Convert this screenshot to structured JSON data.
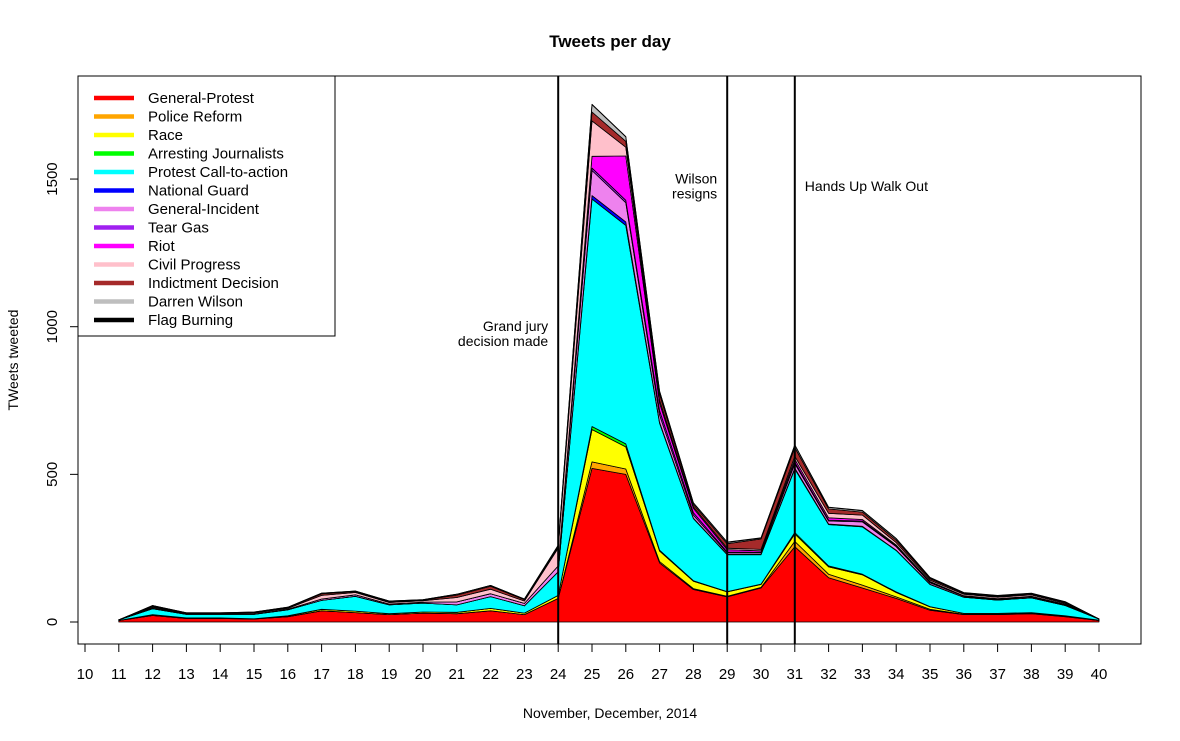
{
  "chart_data": {
    "type": "area",
    "title": "Tweets per day",
    "xlabel": "November, December, 2014",
    "ylabel": "TWeets tweeted",
    "xlim": [
      10,
      40
    ],
    "ylim": [
      0,
      1750
    ],
    "x": [
      11,
      12,
      13,
      14,
      15,
      16,
      17,
      18,
      19,
      20,
      21,
      22,
      23,
      24,
      25,
      26,
      27,
      28,
      29,
      30,
      31,
      32,
      33,
      34,
      35,
      36,
      37,
      38,
      39,
      40
    ],
    "x_ticks": [
      10,
      11,
      12,
      13,
      14,
      15,
      16,
      17,
      18,
      19,
      20,
      21,
      22,
      23,
      24,
      25,
      26,
      27,
      28,
      29,
      30,
      31,
      32,
      33,
      34,
      35,
      36,
      37,
      38,
      39,
      40
    ],
    "y_ticks": [
      0,
      500,
      1000,
      1500
    ],
    "legend_position": "top-left",
    "series": [
      {
        "name": "General-Protest",
        "color": "#ff0000",
        "values": [
          5,
          22,
          12,
          12,
          10,
          18,
          38,
          32,
          25,
          30,
          28,
          38,
          25,
          80,
          520,
          500,
          200,
          110,
          85,
          115,
          255,
          150,
          115,
          80,
          40,
          25,
          25,
          28,
          18,
          5
        ]
      },
      {
        "name": "Police Reform",
        "color": "#ffa500",
        "values": [
          0,
          0,
          0,
          0,
          0,
          0,
          0,
          0,
          0,
          0,
          0,
          0,
          0,
          0,
          22,
          18,
          5,
          3,
          2,
          2,
          18,
          12,
          10,
          5,
          3,
          1,
          1,
          1,
          1,
          0
        ]
      },
      {
        "name": "Race",
        "color": "#ffff00",
        "values": [
          0,
          3,
          2,
          2,
          1,
          3,
          5,
          5,
          3,
          4,
          5,
          8,
          5,
          10,
          110,
          75,
          35,
          25,
          15,
          10,
          25,
          25,
          35,
          15,
          8,
          3,
          3,
          3,
          2,
          1
        ]
      },
      {
        "name": "Arresting Journalists",
        "color": "#00ff00",
        "values": [
          0,
          0,
          0,
          0,
          0,
          0,
          0,
          0,
          0,
          0,
          0,
          0,
          0,
          0,
          10,
          10,
          3,
          2,
          1,
          1,
          5,
          3,
          2,
          2,
          1,
          0,
          0,
          0,
          0,
          0
        ]
      },
      {
        "name": "Protest Call-to-action",
        "color": "#00ffff",
        "values": [
          2,
          20,
          12,
          12,
          15,
          20,
          30,
          50,
          30,
          30,
          25,
          40,
          25,
          80,
          770,
          740,
          430,
          210,
          125,
          100,
          215,
          140,
          160,
          140,
          75,
          55,
          45,
          50,
          35,
          4
        ]
      },
      {
        "name": "National Guard",
        "color": "#0000ff",
        "values": [
          0,
          0,
          0,
          0,
          0,
          0,
          0,
          0,
          0,
          0,
          0,
          0,
          0,
          0,
          12,
          12,
          3,
          2,
          1,
          1,
          3,
          2,
          2,
          1,
          1,
          0,
          0,
          0,
          0,
          0
        ]
      },
      {
        "name": "General-Incident",
        "color": "#ee82ee",
        "values": [
          0,
          2,
          1,
          1,
          1,
          2,
          5,
          5,
          3,
          3,
          10,
          10,
          8,
          20,
          85,
          65,
          25,
          10,
          5,
          5,
          15,
          10,
          15,
          12,
          5,
          3,
          3,
          3,
          2,
          0
        ]
      },
      {
        "name": "Tear Gas",
        "color": "#a020f0",
        "values": [
          0,
          0,
          0,
          0,
          0,
          0,
          0,
          0,
          0,
          0,
          0,
          0,
          0,
          0,
          8,
          8,
          15,
          8,
          3,
          2,
          5,
          3,
          3,
          3,
          2,
          1,
          1,
          1,
          1,
          0
        ]
      },
      {
        "name": "Riot",
        "color": "#ff00ff",
        "values": [
          0,
          0,
          0,
          0,
          0,
          0,
          0,
          0,
          0,
          0,
          0,
          0,
          0,
          0,
          40,
          150,
          25,
          15,
          8,
          5,
          10,
          8,
          5,
          3,
          2,
          1,
          1,
          1,
          1,
          0
        ]
      },
      {
        "name": "Civil Progress",
        "color": "#ffc0cb",
        "values": [
          0,
          3,
          2,
          2,
          3,
          3,
          12,
          8,
          5,
          5,
          15,
          15,
          8,
          60,
          120,
          30,
          10,
          5,
          5,
          5,
          10,
          15,
          15,
          8,
          5,
          5,
          5,
          5,
          3,
          0
        ]
      },
      {
        "name": "Indictment Decision",
        "color": "#a52a2a",
        "values": [
          0,
          3,
          1,
          1,
          2,
          2,
          5,
          3,
          2,
          2,
          8,
          10,
          5,
          5,
          30,
          20,
          20,
          8,
          15,
          35,
          30,
          15,
          10,
          8,
          5,
          3,
          3,
          3,
          3,
          0
        ]
      },
      {
        "name": "Darren Wilson",
        "color": "#bebebe",
        "values": [
          0,
          3,
          1,
          1,
          2,
          2,
          3,
          2,
          3,
          2,
          3,
          3,
          2,
          5,
          25,
          15,
          10,
          5,
          5,
          3,
          8,
          5,
          5,
          5,
          3,
          2,
          2,
          2,
          2,
          0
        ]
      },
      {
        "name": "Flag Burning",
        "color": "#000000",
        "values": [
          0,
          0,
          0,
          0,
          0,
          0,
          0,
          0,
          0,
          0,
          0,
          0,
          0,
          0,
          1,
          1,
          1,
          1,
          1,
          1,
          1,
          1,
          1,
          1,
          1,
          1,
          1,
          1,
          1,
          0
        ]
      }
    ],
    "vlines": [
      24,
      29,
      31
    ],
    "annotations": [
      {
        "x": 24,
        "y": 1000,
        "lines": [
          "Grand jury",
          "decision made"
        ],
        "align": "right"
      },
      {
        "x": 29,
        "y": 1500,
        "lines": [
          "Wilson",
          "resigns"
        ],
        "align": "right"
      },
      {
        "x": 31,
        "y": 1500,
        "lines": [
          "Hands Up Walk Out"
        ],
        "align": "left"
      }
    ]
  }
}
